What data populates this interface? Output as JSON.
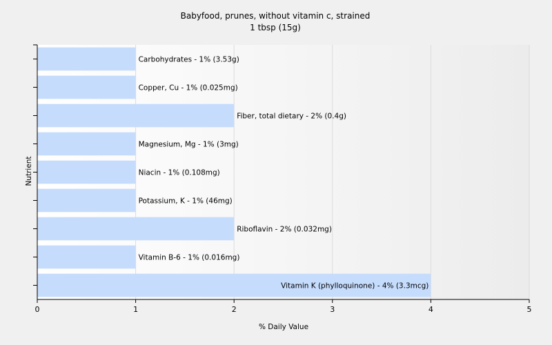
{
  "chart_data": {
    "type": "bar",
    "orientation": "horizontal",
    "title": "Babyfood, prunes, without vitamin c, strained",
    "subtitle": "1 tbsp (15g)",
    "xlabel": "% Daily Value",
    "ylabel": "Nutrient",
    "xlim": [
      0,
      5
    ],
    "xticks": [
      "0",
      "1",
      "2",
      "3",
      "4",
      "5"
    ],
    "grid": "vertical",
    "bar_color": "#c6dcfc",
    "categories": [
      "Carbohydrates",
      "Copper, Cu",
      "Fiber, total dietary",
      "Magnesium, Mg",
      "Niacin",
      "Potassium, K",
      "Riboflavin",
      "Vitamin B-6",
      "Vitamin K (phylloquinone)"
    ],
    "values": [
      1,
      1,
      2,
      1,
      1,
      1,
      2,
      1,
      4
    ],
    "data_labels": [
      "Carbohydrates - 1% (3.53g)",
      "Copper, Cu - 1% (0.025mg)",
      "Fiber, total dietary - 2% (0.4g)",
      "Magnesium, Mg - 1% (3mg)",
      "Niacin - 1% (0.108mg)",
      "Potassium, K - 1% (46mg)",
      "Riboflavin - 2% (0.032mg)",
      "Vitamin B-6 - 1% (0.016mg)",
      "Vitamin K (phylloquinone) - 4% (3.3mcg)"
    ]
  }
}
